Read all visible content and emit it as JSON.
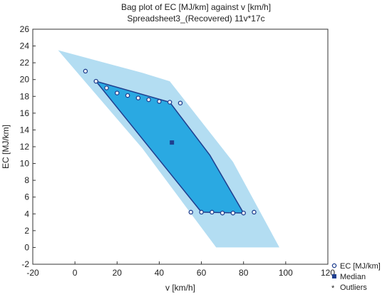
{
  "chart_data": {
    "type": "scatter",
    "subtype": "bag plot",
    "title": "Bag plot of EC [MJ/km] against v [km/h]",
    "subtitle": "Spreadsheet3_(Recovered) 11v*17c",
    "xlabel": "v [km/h]",
    "ylabel": "EC [MJ/km]",
    "xlim": [
      -20,
      120
    ],
    "ylim": [
      -2,
      26
    ],
    "xticks": [
      -20,
      0,
      20,
      40,
      60,
      80,
      100,
      120
    ],
    "yticks": [
      -2,
      0,
      2,
      4,
      6,
      8,
      10,
      12,
      14,
      16,
      18,
      20,
      22,
      24,
      26
    ],
    "grid": false,
    "legend_position": "bottom-right, outside plot",
    "colors": {
      "fence": "#b3ddf2",
      "bag": "#2aa9e2",
      "bag_edge": "#1f3f8f",
      "marker": "#1f3f8f"
    },
    "series": [
      {
        "name": "EC [MJ/km]",
        "marker": "open-circle",
        "points": [
          {
            "x": 5,
            "y": 21.0
          },
          {
            "x": 10,
            "y": 19.8
          },
          {
            "x": 15,
            "y": 19.0
          },
          {
            "x": 20,
            "y": 18.4
          },
          {
            "x": 25,
            "y": 18.1
          },
          {
            "x": 30,
            "y": 17.8
          },
          {
            "x": 35,
            "y": 17.6
          },
          {
            "x": 40,
            "y": 17.4
          },
          {
            "x": 45,
            "y": 17.3
          },
          {
            "x": 50,
            "y": 17.2
          },
          {
            "x": 55,
            "y": 4.2
          },
          {
            "x": 60,
            "y": 4.2
          },
          {
            "x": 65,
            "y": 4.2
          },
          {
            "x": 70,
            "y": 4.1
          },
          {
            "x": 75,
            "y": 4.1
          },
          {
            "x": 80,
            "y": 4.1
          },
          {
            "x": 85,
            "y": 4.2
          }
        ]
      },
      {
        "name": "Median",
        "marker": "filled-square",
        "points": [
          {
            "x": 46,
            "y": 12.5
          }
        ]
      },
      {
        "name": "Outliers",
        "marker": "star",
        "points": []
      }
    ],
    "fence_polygon": [
      {
        "x": -8,
        "y": 23.5
      },
      {
        "x": 32,
        "y": 20.8
      },
      {
        "x": 45,
        "y": 19.8
      },
      {
        "x": 75,
        "y": 10.2
      },
      {
        "x": 97,
        "y": 0
      },
      {
        "x": 67,
        "y": 0
      },
      {
        "x": 32,
        "y": 11.8
      }
    ],
    "bag_polygon": [
      {
        "x": 10,
        "y": 19.8
      },
      {
        "x": 45,
        "y": 17.3
      },
      {
        "x": 64,
        "y": 11.0
      },
      {
        "x": 80,
        "y": 4.1
      },
      {
        "x": 60,
        "y": 4.2
      }
    ]
  }
}
